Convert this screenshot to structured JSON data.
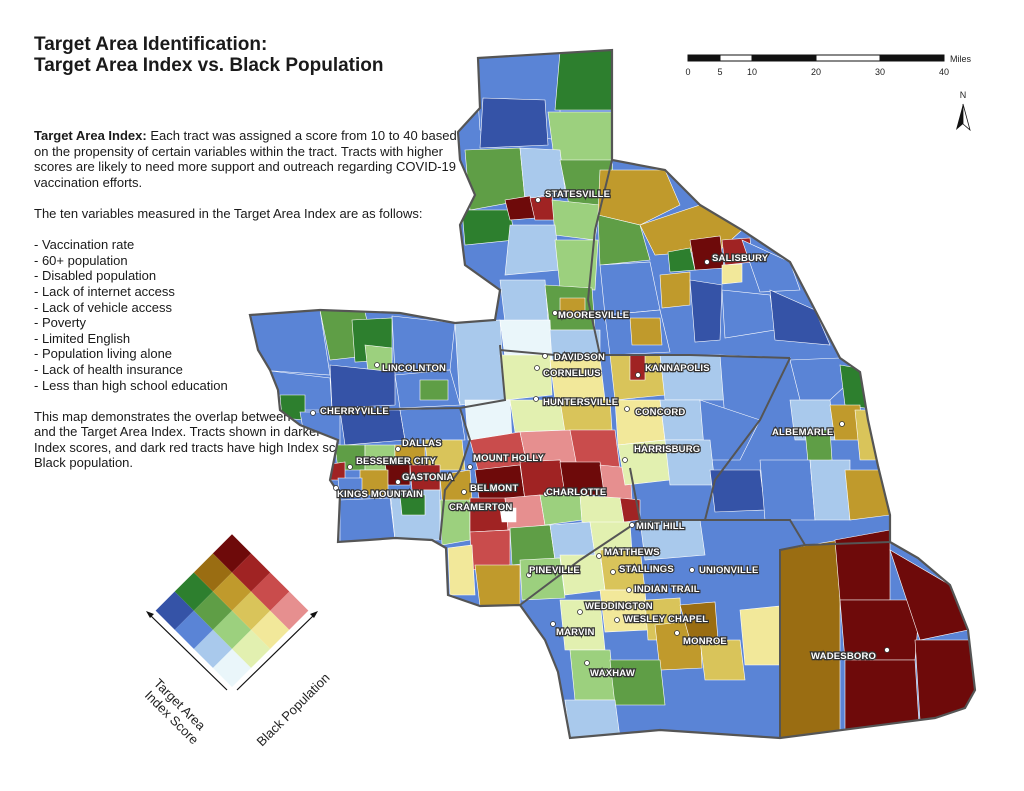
{
  "title_line1": "Target Area Identification:",
  "title_line2": "Target Area Index vs. Black Population",
  "description": {
    "lead": "Target Area Index:",
    "intro": " Each tract was assigned a score from 10 to 40 based on the propensity of certain variables within the tract. Tracts with higher scores are likely to need more support and outreach regarding COVID-19 vaccination efforts.",
    "variables_heading": "The ten variables measured in the Target Area Index are as follows:",
    "variables": [
      "- Vaccination rate",
      "- 60+ population",
      "- Disabled population",
      "- Lack of internet access",
      "- Lack of vehicle access",
      "- Poverty",
      "- Limited English",
      "- Population living alone",
      "- Lack of health insurance",
      "- Less than high school education"
    ],
    "closing": "This map demonstrates the overlap between the region's Black population and the Target Area Index. Tracts shown in darker colors have higher Index scores, and dark red tracts have high Index scores and a larger Black population."
  },
  "scale_bar": {
    "unit": "Miles",
    "ticks": [
      "0",
      "5",
      "10",
      "20",
      "30",
      "40"
    ]
  },
  "north_arrow": {
    "label": "N",
    "icon": "north-arrow-icon"
  },
  "legend": {
    "y_axis_label_1": "Target Area",
    "y_axis_label_2": "Index Score",
    "x_axis_label": "Black Population",
    "matrix_colors": [
      [
        "#eaf6fa",
        "#e2f0b0",
        "#f2e89a",
        "#e68f8f"
      ],
      [
        "#a9c9ec",
        "#9cd07e",
        "#d9c45a",
        "#c94c4c"
      ],
      [
        "#5a84d6",
        "#5f9e46",
        "#c09a2c",
        "#a02323"
      ],
      [
        "#3553a7",
        "#2d7f2e",
        "#9a6d12",
        "#6e0a0a"
      ]
    ]
  },
  "cities": [
    "STATESVILLE",
    "SALISBURY",
    "MOORESVILLE",
    "DAVIDSON",
    "CORNELIUS",
    "KANNAPOLIS",
    "LINCOLNTON",
    "HUNTERSVILLE",
    "CONCORD",
    "CHERRYVILLE",
    "ALBEMARLE",
    "DALLAS",
    "HARRISBURG",
    "BESSEMER CITY",
    "MOUNT HOLLY",
    "GASTONIA",
    "KINGS MOUNTAIN",
    "BELMONT",
    "CHARLOTTE",
    "CRAMERTON",
    "MINT HILL",
    "MATTHEWS",
    "PINEVILLE",
    "UNIONVILLE",
    "STALLINGS",
    "INDIAN TRAIL",
    "WEDDINGTON",
    "WESLEY CHAPEL",
    "MARVIN",
    "MONROE",
    "WADESBORO",
    "WAXHAW"
  ],
  "colors": {
    "county_border": "#555555",
    "tract_border": "#ffffff"
  }
}
